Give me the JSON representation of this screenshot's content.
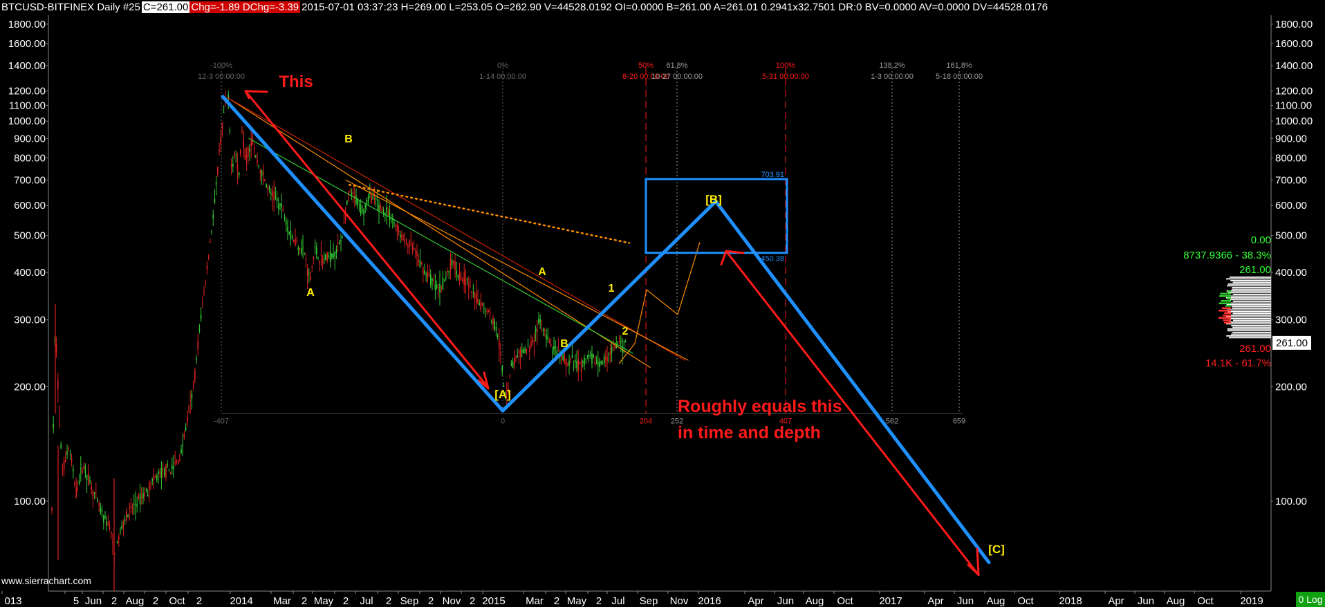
{
  "header": {
    "symbol": "BTCUSD-BITFINEX  Daily  #25",
    "close": "C=261.00",
    "chg": "Chg=-1.89",
    "dchg": "DChg=-3.39",
    "info": "2015-07-01 03:37:23 H=269.00 L=253.05 O=262.90 V=44528.0192 OI=0.0000 B=261.00 A=261.01 0.2941x32.7501 DR:0 BV=0.0000 AV=0.0000 DV=44528.0176"
  },
  "watermark": "www.sierrachart.com",
  "log_button": "0 Log",
  "colors": {
    "up": "#33cc33",
    "down": "#e02020",
    "blue": "#1e90ff",
    "red": "#ff1a1a",
    "yellow": "#ffee00",
    "grid": "#333333"
  },
  "chart_data": {
    "type": "candlestick",
    "scale": "log",
    "ylim": [
      58,
      1900
    ],
    "y_ticks": [
      {
        "value": 1800,
        "label": "1800.00"
      },
      {
        "value": 1600,
        "label": "1600.00"
      },
      {
        "value": 1400,
        "label": "1400.00"
      },
      {
        "value": 1200,
        "label": "1200.00"
      },
      {
        "value": 1100,
        "label": "1100.00"
      },
      {
        "value": 1000,
        "label": "1000.00"
      },
      {
        "value": 900,
        "label": "900.00"
      },
      {
        "value": 800,
        "label": "800.00"
      },
      {
        "value": 700,
        "label": "700.00"
      },
      {
        "value": 600,
        "label": "600.00"
      },
      {
        "value": 500,
        "label": "500.00"
      },
      {
        "value": 400,
        "label": "400.00"
      },
      {
        "value": 300,
        "label": "300.00"
      },
      {
        "value": 200,
        "label": "200.00"
      },
      {
        "value": 100,
        "label": "100.00"
      }
    ],
    "x_ticks": [
      {
        "label": "013",
        "x": 19
      },
      {
        "label": "5",
        "x": 110
      },
      {
        "label": "Jun",
        "x": 135
      },
      {
        "label": "2",
        "x": 165
      },
      {
        "label": "Aug",
        "x": 195
      },
      {
        "label": "2",
        "x": 225
      },
      {
        "label": "Oct",
        "x": 256
      },
      {
        "label": "2",
        "x": 288
      },
      {
        "label": "2014",
        "x": 349
      },
      {
        "label": "Mar",
        "x": 408
      },
      {
        "label": "2",
        "x": 440
      },
      {
        "label": "May",
        "x": 468
      },
      {
        "label": "2",
        "x": 500
      },
      {
        "label": "Jul",
        "x": 530
      },
      {
        "label": "2",
        "x": 562
      },
      {
        "label": "Sep",
        "x": 592
      },
      {
        "label": "2",
        "x": 623
      },
      {
        "label": "Nov",
        "x": 653
      },
      {
        "label": "2",
        "x": 683
      },
      {
        "label": "2015",
        "x": 714
      },
      {
        "label": "Mar",
        "x": 773
      },
      {
        "label": "2",
        "x": 805
      },
      {
        "label": "May",
        "x": 834
      },
      {
        "label": "2",
        "x": 866
      },
      {
        "label": "Jul",
        "x": 894
      },
      {
        "label": "Sep",
        "x": 938
      },
      {
        "label": "Nov",
        "x": 982
      },
      {
        "label": "2016",
        "x": 1026
      },
      {
        "label": "Apr",
        "x": 1093
      },
      {
        "label": "Jun",
        "x": 1136
      },
      {
        "label": "Aug",
        "x": 1178
      },
      {
        "label": "Oct",
        "x": 1222
      },
      {
        "label": "2017",
        "x": 1288
      },
      {
        "label": "Apr",
        "x": 1353
      },
      {
        "label": "Jun",
        "x": 1396
      },
      {
        "label": "Aug",
        "x": 1440
      },
      {
        "label": "Oct",
        "x": 1483
      },
      {
        "label": "2018",
        "x": 1548
      },
      {
        "label": "Apr",
        "x": 1614
      },
      {
        "label": "Jun",
        "x": 1657
      },
      {
        "label": "Aug",
        "x": 1700
      },
      {
        "label": "Oct",
        "x": 1743
      },
      {
        "label": "2019",
        "x": 1810
      }
    ],
    "price_path": [
      [
        75,
        95
      ],
      [
        80,
        300
      ],
      [
        85,
        180
      ],
      [
        90,
        120
      ],
      [
        100,
        140
      ],
      [
        110,
        105
      ],
      [
        120,
        125
      ],
      [
        130,
        112
      ],
      [
        140,
        100
      ],
      [
        150,
        90
      ],
      [
        160,
        85
      ],
      [
        165,
        70
      ],
      [
        170,
        78
      ],
      [
        180,
        90
      ],
      [
        190,
        95
      ],
      [
        200,
        100
      ],
      [
        210,
        105
      ],
      [
        220,
        112
      ],
      [
        230,
        118
      ],
      [
        240,
        120
      ],
      [
        250,
        122
      ],
      [
        260,
        130
      ],
      [
        270,
        160
      ],
      [
        280,
        200
      ],
      [
        290,
        300
      ],
      [
        300,
        420
      ],
      [
        310,
        600
      ],
      [
        318,
        850
      ],
      [
        325,
        1100
      ],
      [
        330,
        1150
      ],
      [
        335,
        750
      ],
      [
        340,
        850
      ],
      [
        345,
        700
      ],
      [
        350,
        950
      ],
      [
        355,
        800
      ],
      [
        360,
        850
      ],
      [
        365,
        900
      ],
      [
        370,
        800
      ],
      [
        380,
        720
      ],
      [
        390,
        650
      ],
      [
        400,
        620
      ],
      [
        410,
        580
      ],
      [
        420,
        500
      ],
      [
        430,
        480
      ],
      [
        440,
        450
      ],
      [
        448,
        380
      ],
      [
        455,
        460
      ],
      [
        465,
        430
      ],
      [
        475,
        440
      ],
      [
        485,
        450
      ],
      [
        495,
        500
      ],
      [
        505,
        650
      ],
      [
        515,
        620
      ],
      [
        525,
        580
      ],
      [
        535,
        640
      ],
      [
        545,
        610
      ],
      [
        555,
        580
      ],
      [
        565,
        560
      ],
      [
        575,
        520
      ],
      [
        585,
        480
      ],
      [
        595,
        470
      ],
      [
        605,
        430
      ],
      [
        615,
        400
      ],
      [
        625,
        380
      ],
      [
        635,
        360
      ],
      [
        645,
        390
      ],
      [
        655,
        430
      ],
      [
        665,
        390
      ],
      [
        675,
        380
      ],
      [
        685,
        350
      ],
      [
        695,
        330
      ],
      [
        705,
        320
      ],
      [
        712,
        300
      ],
      [
        720,
        280
      ],
      [
        725,
        230
      ],
      [
        730,
        190
      ],
      [
        735,
        200
      ],
      [
        740,
        230
      ],
      [
        750,
        240
      ],
      [
        760,
        250
      ],
      [
        770,
        260
      ],
      [
        780,
        300
      ],
      [
        790,
        270
      ],
      [
        800,
        250
      ],
      [
        810,
        240
      ],
      [
        820,
        230
      ],
      [
        830,
        235
      ],
      [
        840,
        225
      ],
      [
        850,
        240
      ],
      [
        860,
        235
      ],
      [
        870,
        230
      ],
      [
        880,
        245
      ],
      [
        890,
        255
      ],
      [
        897,
        265
      ],
      [
        900,
        250
      ],
      [
        905,
        261
      ]
    ],
    "fib_time": [
      {
        "pct": "-100%",
        "date": "12-3  00:00:00",
        "bars": "-407",
        "x": 320,
        "color": "#666666"
      },
      {
        "pct": "0%",
        "date": "1-14  00:00:00",
        "bars": "0",
        "x": 727,
        "color": "#666666"
      },
      {
        "pct": "50%",
        "date": "8-20  00:00:00",
        "bars": "204",
        "x": 934,
        "color": "#ff1a1a"
      },
      {
        "pct": "61.8%",
        "date": "10-27  00:00:00",
        "bars": "252",
        "x": 979,
        "color": "#999999"
      },
      {
        "pct": "100%",
        "date": "5-31  00:00:00",
        "bars": "407",
        "x": 1136,
        "color": "#ff1a1a"
      },
      {
        "pct": "138.2%",
        "date": "1-3  00:00:00",
        "bars": "562",
        "x": 1290,
        "color": "#999999"
      },
      {
        "pct": "161.8%",
        "date": "5-18  00:00:00",
        "bars": "659",
        "x": 1387,
        "color": "#999999"
      }
    ],
    "box": {
      "top_label": "703.91",
      "bottom_label": "450.38"
    },
    "annotations": {
      "this": "This",
      "roughly_1": "Roughly equals this",
      "roughly_2": "in time and depth",
      "A1": "A",
      "B1": "B",
      "A_bracket": "[A]",
      "A2": "A",
      "B2": "B",
      "one": "1",
      "two": "2",
      "B_bracket": "[B]",
      "C_bracket": "[C]"
    },
    "volume_profile": {
      "top": "0.00",
      "up_stats": "8737.9366 - 38.3%",
      "up_price": "261.00",
      "current": "261.00",
      "down_price": "261.00",
      "down_stats": "14.1K - 61.7%"
    }
  }
}
